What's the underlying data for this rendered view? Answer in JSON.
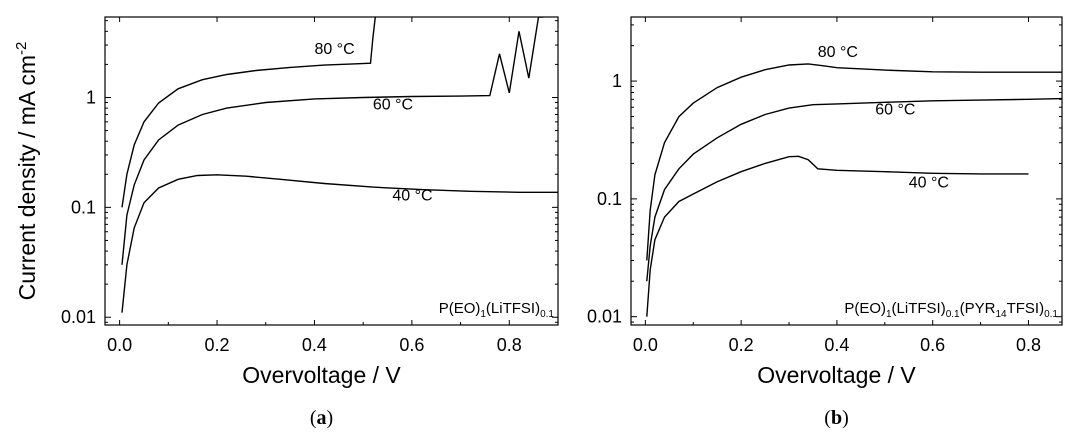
{
  "chart_data": [
    {
      "type": "line",
      "panel_label": "(a)",
      "xlabel": "Overvoltage / V",
      "ylabel": "Current density / mA cm",
      "ylabel_sup": "-2",
      "yscale": "log",
      "xlim": [
        -0.03,
        0.9
      ],
      "ylim": [
        0.0085,
        5.4
      ],
      "xticks": [
        "0.0",
        "0.2",
        "0.4",
        "0.6",
        "0.8"
      ],
      "xtick_values": [
        0,
        0.2,
        0.4,
        0.6,
        0.8
      ],
      "yticks": [
        "0.01",
        "0.1",
        "1"
      ],
      "ytick_values": [
        0.01,
        0.1,
        1
      ],
      "annotation": {
        "main": "P(EO)",
        "s1": "1",
        "mid": "(LiTFSI)",
        "s2": "0.1"
      },
      "series": [
        {
          "name": "80 °C",
          "x": [
            0.005,
            0.015,
            0.03,
            0.05,
            0.08,
            0.12,
            0.17,
            0.22,
            0.28,
            0.35,
            0.42,
            0.48,
            0.515,
            0.52,
            0.525
          ],
          "y": [
            0.1,
            0.2,
            0.37,
            0.6,
            0.89,
            1.2,
            1.45,
            1.62,
            1.76,
            1.88,
            1.97,
            2.02,
            2.05,
            3.5,
            5.4
          ],
          "label_at": [
            0.4,
            2.5
          ]
        },
        {
          "name": "60 °C",
          "x": [
            0.005,
            0.015,
            0.03,
            0.05,
            0.08,
            0.12,
            0.17,
            0.22,
            0.3,
            0.4,
            0.5,
            0.6,
            0.7,
            0.76,
            0.78,
            0.8,
            0.82,
            0.84,
            0.86,
            0.87
          ],
          "y": [
            0.03,
            0.085,
            0.16,
            0.27,
            0.41,
            0.56,
            0.7,
            0.8,
            0.9,
            0.97,
            1.0,
            1.02,
            1.03,
            1.04,
            2.5,
            1.1,
            4.0,
            1.5,
            5.4,
            5.4
          ],
          "label_at": [
            0.52,
            0.78
          ]
        },
        {
          "name": "40 °C",
          "x": [
            0.005,
            0.015,
            0.03,
            0.05,
            0.08,
            0.12,
            0.16,
            0.2,
            0.26,
            0.33,
            0.42,
            0.52,
            0.62,
            0.72,
            0.82,
            0.9
          ],
          "y": [
            0.011,
            0.03,
            0.065,
            0.11,
            0.15,
            0.18,
            0.195,
            0.198,
            0.192,
            0.18,
            0.165,
            0.153,
            0.145,
            0.14,
            0.137,
            0.137
          ],
          "label_at": [
            0.56,
            0.115
          ]
        }
      ]
    },
    {
      "type": "line",
      "panel_label": "(b)",
      "xlabel": "Overvoltage / V",
      "ylabel": "",
      "yscale": "log",
      "xlim": [
        -0.03,
        0.87
      ],
      "ylim": [
        0.0085,
        3.5
      ],
      "xticks": [
        "0.0",
        "0.2",
        "0.4",
        "0.6",
        "0.8"
      ],
      "xtick_values": [
        0,
        0.2,
        0.4,
        0.6,
        0.8
      ],
      "yticks": [
        "0.01",
        "0.1",
        "1"
      ],
      "ytick_values": [
        0.01,
        0.1,
        1
      ],
      "annotation": {
        "main": "P(EO)",
        "s1": "1",
        "mid": "(LiTFSI)",
        "s2": "0.1",
        "mid2": "(PYR",
        "s3": "14",
        "mid3": "TFSI)",
        "s4": "0.1"
      },
      "series": [
        {
          "name": "80 °C",
          "x": [
            0.003,
            0.01,
            0.02,
            0.04,
            0.07,
            0.1,
            0.15,
            0.2,
            0.25,
            0.3,
            0.34,
            0.37,
            0.4,
            0.5,
            0.6,
            0.7,
            0.8,
            0.87
          ],
          "y": [
            0.03,
            0.08,
            0.16,
            0.3,
            0.5,
            0.65,
            0.88,
            1.08,
            1.25,
            1.37,
            1.4,
            1.35,
            1.3,
            1.24,
            1.2,
            1.19,
            1.19,
            1.19
          ],
          "label_at": [
            0.36,
            1.6
          ]
        },
        {
          "name": "60 °C",
          "x": [
            0.003,
            0.01,
            0.02,
            0.04,
            0.07,
            0.1,
            0.15,
            0.2,
            0.25,
            0.3,
            0.35,
            0.4,
            0.5,
            0.6,
            0.7,
            0.8,
            0.87
          ],
          "y": [
            0.02,
            0.04,
            0.07,
            0.12,
            0.18,
            0.24,
            0.33,
            0.43,
            0.52,
            0.59,
            0.63,
            0.64,
            0.66,
            0.68,
            0.69,
            0.7,
            0.71
          ],
          "label_at": [
            0.48,
            0.52
          ]
        },
        {
          "name": "40 °C",
          "x": [
            0.003,
            0.01,
            0.02,
            0.04,
            0.07,
            0.1,
            0.15,
            0.2,
            0.25,
            0.3,
            0.32,
            0.34,
            0.36,
            0.4,
            0.5,
            0.6,
            0.7,
            0.8
          ],
          "y": [
            0.01,
            0.025,
            0.045,
            0.07,
            0.095,
            0.11,
            0.14,
            0.17,
            0.2,
            0.228,
            0.23,
            0.215,
            0.18,
            0.175,
            0.17,
            0.165,
            0.163,
            0.163
          ],
          "label_at": [
            0.55,
            0.125
          ]
        }
      ]
    }
  ]
}
